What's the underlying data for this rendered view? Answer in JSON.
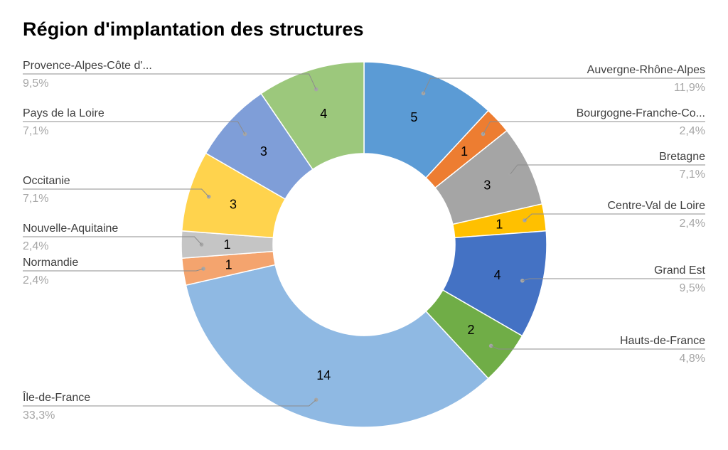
{
  "chart_data": {
    "type": "pie",
    "donut": true,
    "title": "Région d'implantation des structures",
    "slices": [
      {
        "label": "Auvergne-Rhône-Alpes",
        "value": 5,
        "percent": "11,9%",
        "color": "#5B9BD5"
      },
      {
        "label": "Bourgogne-Franche-Co...",
        "value": 1,
        "percent": "2,4%",
        "color": "#ED7D31"
      },
      {
        "label": "Bretagne",
        "value": 3,
        "percent": "7,1%",
        "color": "#A5A5A5"
      },
      {
        "label": "Centre-Val de Loire",
        "value": 1,
        "percent": "2,4%",
        "color": "#FFC000"
      },
      {
        "label": "Grand Est",
        "value": 4,
        "percent": "9,5%",
        "color": "#4472C4"
      },
      {
        "label": "Hauts-de-France",
        "value": 2,
        "percent": "4,8%",
        "color": "#70AD47"
      },
      {
        "label": "Île-de-France",
        "value": 14,
        "percent": "33,3%",
        "color": "#8FB9E3"
      },
      {
        "label": "Normandie",
        "value": 1,
        "percent": "2,4%",
        "color": "#F4A46E"
      },
      {
        "label": "Nouvelle-Aquitaine",
        "value": 1,
        "percent": "2,4%",
        "color": "#C5C5C5"
      },
      {
        "label": "Occitanie",
        "value": 3,
        "percent": "7,1%",
        "color": "#FFD34D"
      },
      {
        "label": "Pays de la Loire",
        "value": 3,
        "percent": "7,1%",
        "color": "#7F9ED8"
      },
      {
        "label": "Provence-Alpes-Côte d'...",
        "value": 4,
        "percent": "9,5%",
        "color": "#9CC87C"
      }
    ]
  }
}
